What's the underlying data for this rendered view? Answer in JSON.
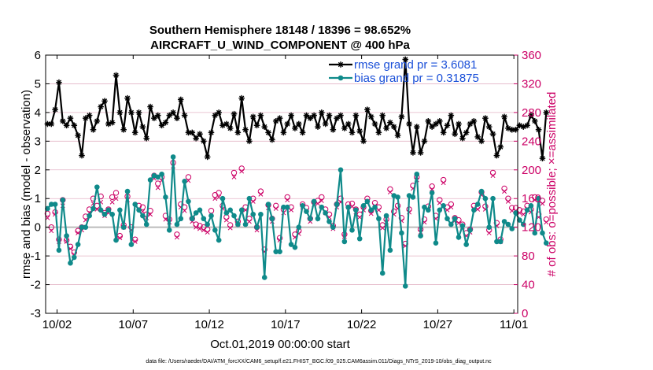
{
  "chart_data": {
    "type": "line",
    "title_line1": "Southern Hemisphere 18148 / 18396 = 98.652%",
    "title_line2": "AIRCRAFT_U_WIND_COMPONENT @ 400 hPa",
    "xlabel": "Oct.01,2019 00:00:00 start",
    "ylabel_left": "rmse and bias (model - observation)",
    "ylabel_right": "# of obs: o=possible; ×=assimilated",
    "footnote": "data file: /Users/raeder/DAI/ATM_forcXX/CAM6_setup/f.e21.FHIST_BGC.f09_025.CAM6assim.011/Diags_NTrS_2019-10/obs_diag_output.nc",
    "x_ticks": [
      {
        "day": 1,
        "label": "10/02"
      },
      {
        "day": 6,
        "label": "10/07"
      },
      {
        "day": 11,
        "label": "10/12"
      },
      {
        "day": 16,
        "label": "10/17"
      },
      {
        "day": 21,
        "label": "10/22"
      },
      {
        "day": 26,
        "label": "10/27"
      },
      {
        "day": 31,
        "label": "11/01"
      }
    ],
    "y_left_ticks": [
      "-3",
      "-2",
      "-1",
      "0",
      "1",
      "2",
      "3",
      "4",
      "5",
      "6"
    ],
    "y_right_ticks": [
      "0",
      "40",
      "80",
      "120",
      "160",
      "200",
      "240",
      "280",
      "320",
      "360"
    ],
    "xlim": [
      0.25,
      31.25
    ],
    "ylim_left": [
      -3,
      6
    ],
    "ylim_right": [
      0,
      360
    ],
    "colors": {
      "rmse": "#000000",
      "bias": "#0f8a8a",
      "obs": "#cc0066",
      "zero_line": "#bbbbbb",
      "grid": "#e3b5c6",
      "legend_text": "#1a4fd8"
    },
    "legend": [
      {
        "series": "rmse",
        "label": "rmse grand pr = 3.6081"
      },
      {
        "series": "bias",
        "label": "bias grand pr = 0.31875"
      }
    ],
    "x_start": 0.375,
    "x_step": 0.25,
    "series": [
      {
        "name": "rmse",
        "values": [
          3.6,
          3.6,
          4.1,
          5.05,
          3.7,
          3.55,
          3.8,
          3.55,
          3.2,
          2.5,
          3.8,
          3.9,
          3.4,
          3.7,
          4.2,
          4.4,
          3.6,
          3.65,
          5.3,
          4.0,
          3.4,
          4.5,
          4.0,
          3.3,
          4.0,
          3.5,
          3.1,
          4.2,
          3.8,
          3.9,
          3.55,
          3.65,
          3.9,
          4.0,
          3.8,
          4.45,
          3.9,
          3.3,
          3.3,
          3.1,
          3.25,
          3.0,
          2.45,
          3.3,
          3.9,
          4.0,
          3.55,
          3.6,
          3.45,
          3.95,
          3.3,
          4.5,
          3.4,
          3.0,
          3.85,
          3.55,
          3.9,
          3.5,
          3.3,
          3.05,
          3.7,
          3.8,
          3.3,
          3.6,
          3.9,
          3.45,
          3.6,
          3.3,
          3.9,
          3.8,
          3.9,
          3.5,
          4.0,
          3.6,
          3.9,
          3.4,
          3.8,
          3.9,
          3.45,
          3.6,
          3.3,
          3.9,
          3.35,
          3.0,
          4.1,
          3.85,
          3.6,
          3.3,
          3.9,
          3.45,
          3.65,
          3.5,
          3.2,
          3.85,
          5.85,
          3.6,
          2.6,
          3.5,
          2.6,
          3.0,
          3.7,
          3.5,
          3.6,
          3.7,
          3.3,
          3.55,
          3.9,
          3.25,
          3.6,
          3.1,
          3.3,
          3.6,
          3.7,
          3.15,
          3.0,
          3.8,
          3.5,
          3.25,
          2.5,
          2.8,
          3.85,
          3.45,
          3.4,
          3.4,
          3.55,
          3.5,
          3.55,
          3.9,
          3.7,
          3.4,
          2.4,
          4.0
        ]
      },
      {
        "name": "bias",
        "values": [
          0.65,
          0.8,
          0.8,
          -0.8,
          0.95,
          -0.3,
          -1.25,
          -1.05,
          -0.6,
          0.0,
          0.0,
          0.4,
          0.65,
          1.4,
          0.6,
          0.45,
          0.6,
          0.45,
          -0.45,
          0.6,
          0.0,
          1.25,
          -0.6,
          0.8,
          0.6,
          0.4,
          0.1,
          1.65,
          1.8,
          1.75,
          1.85,
          1.05,
          -0.1,
          2.45,
          0.1,
          0.3,
          1.6,
          0.9,
          0.3,
          0.5,
          0.6,
          0.3,
          0.1,
          0.4,
          -0.1,
          -0.45,
          1.0,
          0.5,
          0.6,
          0.4,
          0.1,
          0.6,
          0.1,
          1.0,
          0.45,
          0.0,
          0.45,
          -1.75,
          0.8,
          0.3,
          -0.85,
          -0.85,
          0.7,
          0.7,
          -0.6,
          -0.7,
          0.0,
          0.75,
          0.55,
          0.3,
          0.9,
          0.3,
          0.7,
          0.5,
          0.2,
          0.0,
          0.8,
          2.0,
          -0.5,
          0.7,
          -0.1,
          0.6,
          -0.4,
          0.75,
          0.9,
          0.6,
          0.7,
          0.3,
          -1.6,
          0.4,
          -0.8,
          1.1,
          1.05,
          -0.2,
          -2.05,
          1.1,
          1.05,
          1.85,
          -0.3,
          0.7,
          0.6,
          1.2,
          -0.55,
          0.6,
          0.75,
          0.3,
          0.1,
          0.3,
          -0.35,
          0.05,
          -0.6,
          -0.1,
          0.6,
          0.8,
          1.25,
          1.0,
          0.0,
          1.0,
          -0.5,
          -0.5,
          0.2,
          0.1,
          -0.05,
          0.5,
          0.25,
          0.1,
          0.6,
          0.75,
          -0.2,
          1.0,
          -0.2,
          -0.55
        ]
      },
      {
        "name": "obs_possible",
        "values": [
          139,
          120,
          141,
          103,
          158,
          102,
          93,
          85,
          115,
          120,
          135,
          145,
          160,
          150,
          163,
          140,
          145,
          162,
          168,
          108,
          123,
          163,
          120,
          103,
          150,
          148,
          138,
          143,
          192,
          181,
          190,
          136,
          131,
          210,
          110,
          152,
          148,
          190,
          132,
          124,
          122,
          120,
          117,
          143,
          165,
          168,
          150,
          134,
          123,
          196,
          128,
          202,
          148,
          132,
          160,
          120,
          170,
          89,
          151,
          132,
          150,
          105,
          145,
          162,
          148,
          110,
          115,
          152,
          147,
          132,
          155,
          157,
          162,
          145,
          138,
          122,
          152,
          160,
          110,
          152,
          153,
          145,
          138,
          148,
          160,
          143,
          154,
          148,
          123,
          131,
          173,
          142,
          150,
          133,
          97,
          145,
          178,
          190,
          117,
          131,
          149,
          177,
          136,
          158,
          186,
          148,
          152,
          133,
          130,
          124,
          112,
          117,
          150,
          149,
          169,
          149,
          116,
          196,
          126,
          103,
          174,
          160,
          147,
          147,
          144,
          142,
          150,
          145,
          162,
          138,
          157,
          131
        ]
      },
      {
        "name": "obs_assimilated",
        "values": [
          133,
          115,
          138,
          100,
          150,
          100,
          90,
          82,
          112,
          116,
          130,
          140,
          153,
          145,
          155,
          136,
          140,
          155,
          160,
          105,
          120,
          158,
          116,
          100,
          146,
          142,
          133,
          138,
          188,
          175,
          185,
          131,
          127,
          205,
          106,
          148,
          143,
          185,
          128,
          120,
          118,
          116,
          113,
          138,
          160,
          162,
          146,
          130,
          119,
          190,
          124,
          198,
          144,
          128,
          156,
          116,
          166,
          86,
          147,
          128,
          146,
          102,
          140,
          158,
          144,
          106,
          111,
          148,
          143,
          128,
          151,
          153,
          157,
          140,
          134,
          118,
          148,
          155,
          107,
          148,
          149,
          141,
          134,
          144,
          156,
          139,
          150,
          144,
          119,
          127,
          169,
          138,
          146,
          129,
          94,
          141,
          174,
          186,
          113,
          127,
          145,
          173,
          132,
          154,
          182,
          144,
          148,
          129,
          126,
          120,
          108,
          113,
          146,
          145,
          165,
          145,
          112,
          192,
          122,
          100,
          170,
          156,
          143,
          143,
          140,
          138,
          146,
          141,
          158,
          134,
          153,
          127
        ]
      }
    ]
  }
}
